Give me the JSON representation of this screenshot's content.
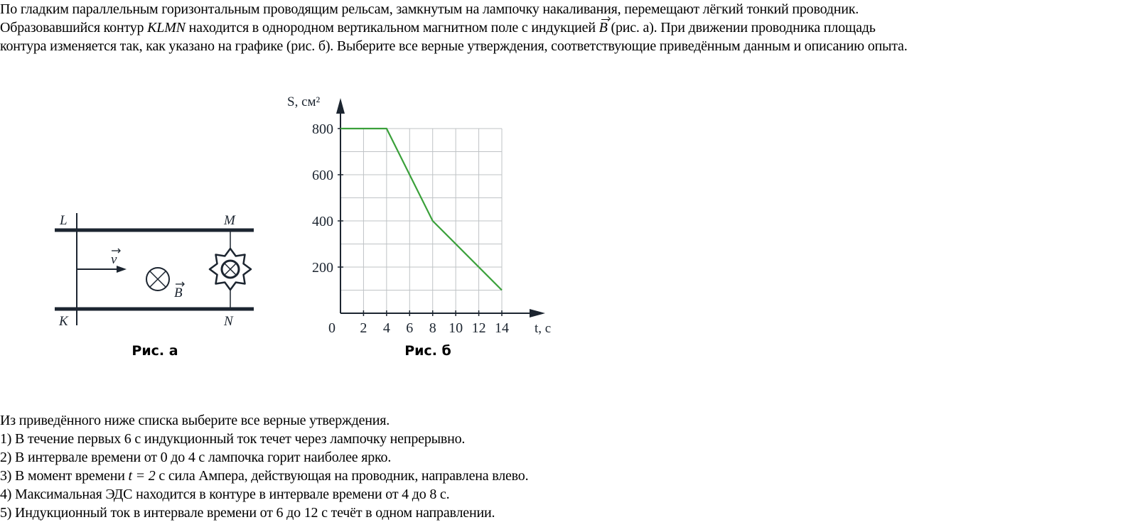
{
  "problem": {
    "line1": "По гладким параллельным горизонтальным проводящим рельсам, замкнутым на лампочку накаливания, перемещают лёгкий тонкий проводник.",
    "line2_a": "Образовавшийся контур ",
    "line2_math": "KLMN",
    "line2_b": " находится в однородном вертикальном магнитном поле с индукцией ",
    "line2_vec": "B",
    "line2_c": " (рис. а). При движении проводника площадь",
    "line3": "контура изменяется так, как указано на графике (рис. б). Выберите все верные утверждения, соответствующие приведённым данным и описанию опыта."
  },
  "figure_a": {
    "caption": "Рис. а",
    "labels": {
      "L": "L",
      "M": "M",
      "K": "K",
      "N": "N",
      "v": "v",
      "B": "B"
    },
    "icons": [
      "velocity-arrow",
      "field-into-page-icon",
      "lamp-icon"
    ]
  },
  "chart_data": {
    "type": "line",
    "caption": "Рис. б",
    "ylabel": "S, см²",
    "xlabel": "t, с",
    "x": [
      0,
      4,
      8,
      14
    ],
    "y": [
      800,
      800,
      400,
      100
    ],
    "xlim": [
      0,
      14
    ],
    "ylim": [
      0,
      800
    ],
    "xticks": [
      "0",
      "2",
      "4",
      "6",
      "8",
      "10",
      "12",
      "14"
    ],
    "yticks": [
      "200",
      "400",
      "600",
      "800"
    ],
    "grid": true,
    "line_color": "#3aa03a"
  },
  "questions": {
    "intro": "Из приведённого ниже списка выберите все верные утверждения.",
    "items": [
      "1) В течение первых 6 с индукционный ток течет через лампочку непрерывно.",
      "2) В интервале времени от 0 до 4 с лампочка горит наиболее ярко.",
      "3) В момент времени ",
      "4) Максимальная ЭДС находится в контуре в интервале времени от 4 до 8 с.",
      "5) Индукционный ток в интервале времени от 6 до 12 с течёт в одном направлении."
    ],
    "item3_math": "t = 2",
    "item3_rest": " с сила Ампера, действующая на проводник, направлена влево."
  }
}
